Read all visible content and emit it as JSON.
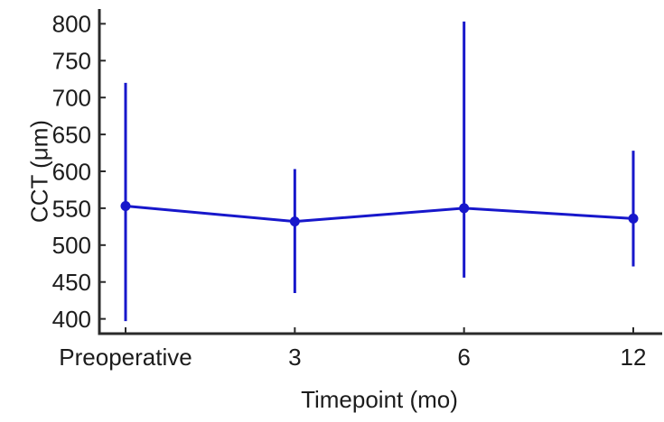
{
  "figure": {
    "background": "#ffffff"
  },
  "chart_data": {
    "type": "line",
    "title": "",
    "xlabel": "Timepoint (mo)",
    "ylabel": "CCT (μm)",
    "categories": [
      "Preoperative",
      "3",
      "6",
      "12"
    ],
    "series": [
      {
        "name": "CCT",
        "values": [
          553,
          532,
          550,
          536
        ],
        "error_low": [
          397,
          435,
          456,
          471
        ],
        "error_high": [
          720,
          603,
          803,
          628
        ]
      }
    ],
    "yticks": [
      400,
      450,
      500,
      550,
      600,
      650,
      700,
      750,
      800
    ],
    "ylim": [
      380,
      820
    ],
    "grid": false,
    "legend": "none",
    "marker": "circle",
    "colors": {
      "line": "#1717cb",
      "axis": "#2a2a2a",
      "text": "#1c1c1c"
    }
  }
}
